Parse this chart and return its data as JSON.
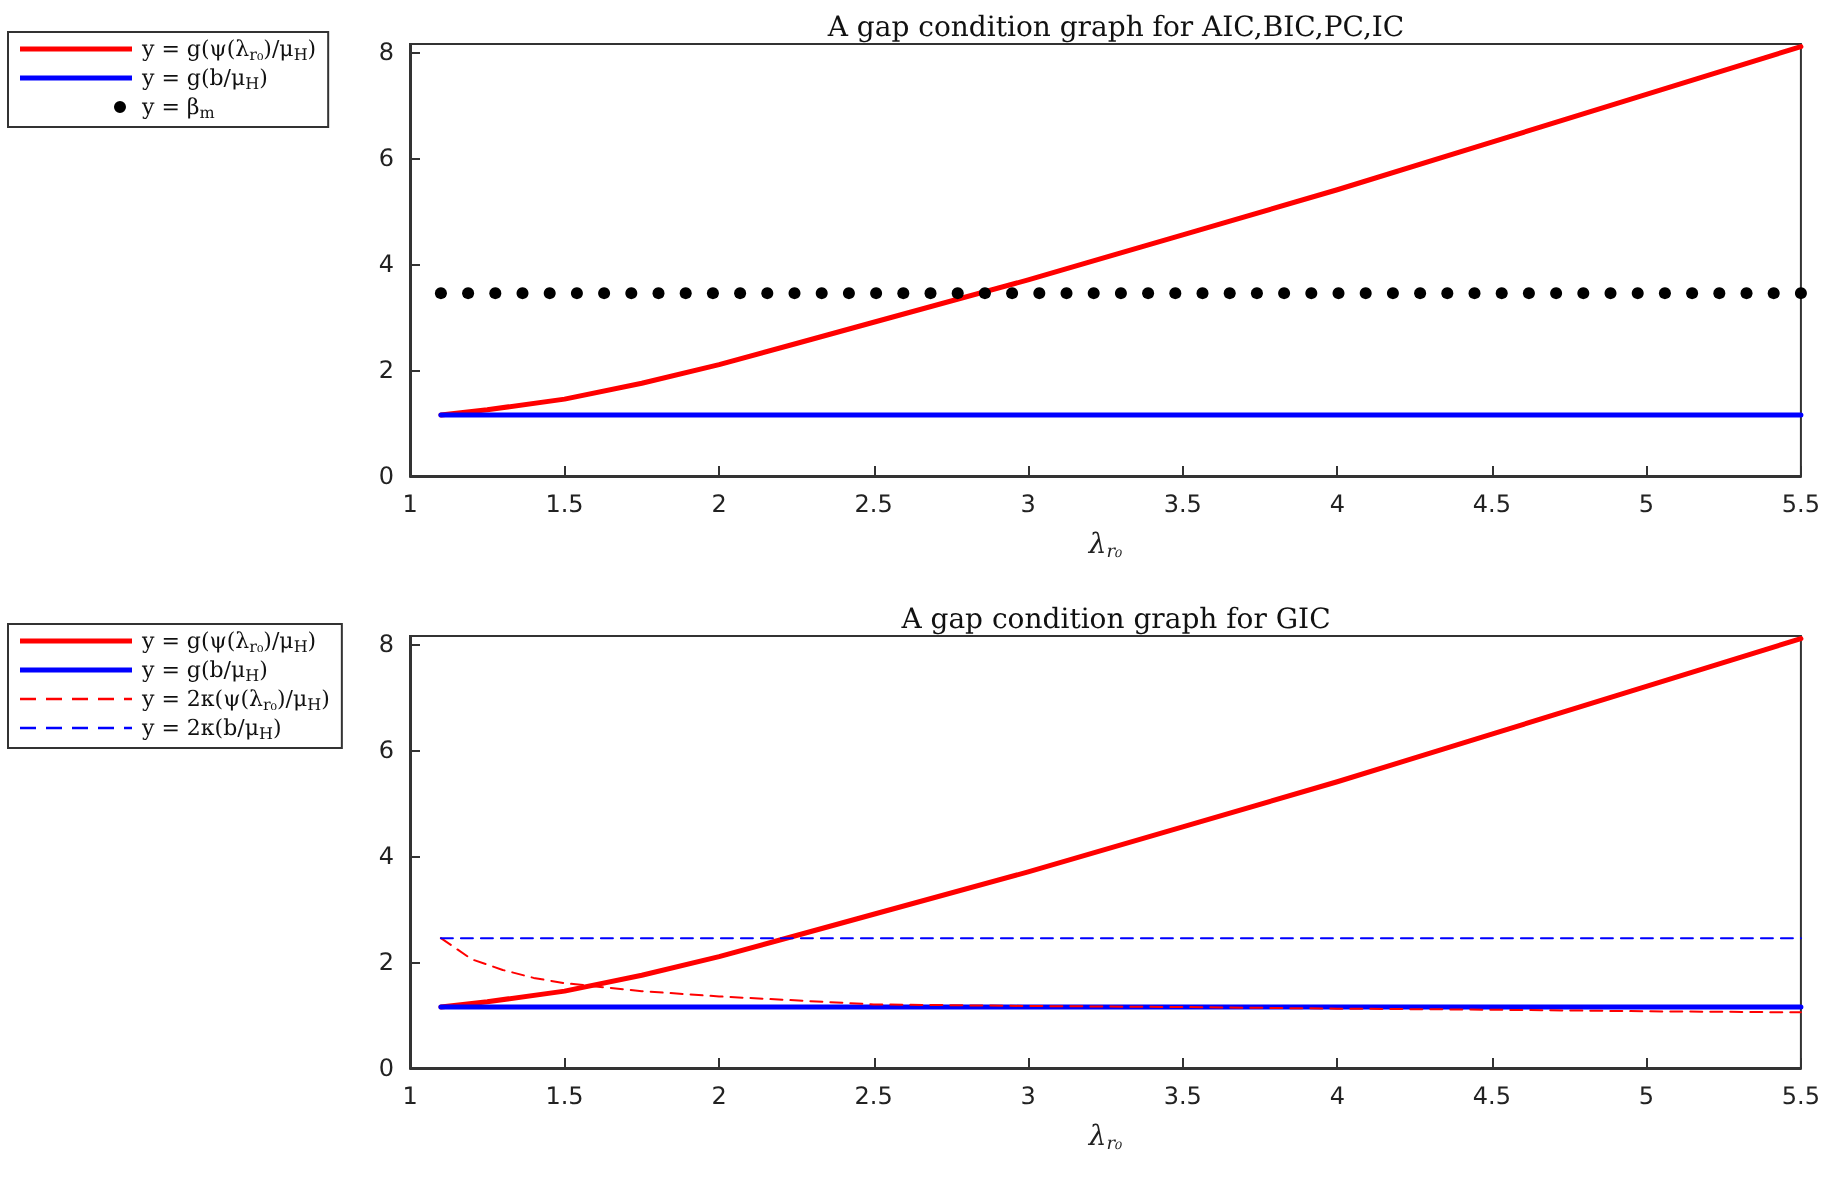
{
  "chart_data": [
    {
      "type": "line",
      "title": "A gap condition graph for AIC,BIC,PC,IC",
      "xlabel": "λ$_{r₀}$",
      "xlim": [
        1,
        5.5
      ],
      "xticks": [
        1,
        1.5,
        2,
        2.5,
        3,
        3.5,
        4,
        4.5,
        5,
        5.5
      ],
      "ylim": [
        0,
        8.15
      ],
      "yticks": [
        0,
        2,
        4,
        6,
        8
      ],
      "legend": "top left",
      "series": [
        {
          "name": "y = g(ψ(λ$_{r₀}$)/μ$_{H}$)",
          "color": "#ff0000",
          "line_style": "solid",
          "x": [
            1.1,
            1.25,
            1.5,
            1.75,
            2,
            2.25,
            2.5,
            3,
            3.5,
            4,
            4.5,
            5,
            5.5
          ],
          "values": [
            1.15,
            1.25,
            1.45,
            1.75,
            2.1,
            2.5,
            2.9,
            3.7,
            4.55,
            5.4,
            6.3,
            7.2,
            8.1
          ]
        },
        {
          "name": "y = g(b/μ$_{H}$)",
          "color": "#0000ff",
          "line_style": "solid",
          "x": [
            1.1,
            5.5
          ],
          "values": [
            1.15,
            1.15
          ]
        },
        {
          "name": "y = β$_{m}$",
          "color": "#000000",
          "type": "scatter",
          "marker": "circle",
          "x": [
            1.1,
            1.188,
            1.276,
            1.364,
            1.452,
            1.54,
            1.628,
            1.716,
            1.804,
            1.892,
            1.98,
            2.068,
            2.156,
            2.244,
            2.332,
            2.42,
            2.508,
            2.596,
            2.684,
            2.772,
            2.86,
            2.948,
            3.036,
            3.124,
            3.212,
            3.3,
            3.388,
            3.476,
            3.564,
            3.652,
            3.74,
            3.828,
            3.916,
            4.004,
            4.092,
            4.18,
            4.268,
            4.356,
            4.444,
            4.532,
            4.62,
            4.708,
            4.796,
            4.884,
            4.972,
            5.06,
            5.148,
            5.236,
            5.324,
            5.412,
            5.5
          ],
          "values": [
            3.45,
            3.45,
            3.45,
            3.45,
            3.45,
            3.45,
            3.45,
            3.45,
            3.45,
            3.45,
            3.45,
            3.45,
            3.45,
            3.45,
            3.45,
            3.45,
            3.45,
            3.45,
            3.45,
            3.45,
            3.45,
            3.45,
            3.45,
            3.45,
            3.45,
            3.45,
            3.45,
            3.45,
            3.45,
            3.45,
            3.45,
            3.45,
            3.45,
            3.45,
            3.45,
            3.45,
            3.45,
            3.45,
            3.45,
            3.45,
            3.45,
            3.45,
            3.45,
            3.45,
            3.45,
            3.45,
            3.45,
            3.45,
            3.45,
            3.45,
            3.45
          ]
        }
      ]
    },
    {
      "type": "line",
      "title": "A gap condition graph for GIC",
      "xlabel": "λ$_{r₀}$",
      "xlim": [
        1,
        5.5
      ],
      "xticks": [
        1,
        1.5,
        2,
        2.5,
        3,
        3.5,
        4,
        4.5,
        5,
        5.5
      ],
      "ylim": [
        0,
        8.15
      ],
      "yticks": [
        0,
        2,
        4,
        6,
        8
      ],
      "legend": "top left",
      "series": [
        {
          "name": "y = g(ψ(λ$_{r₀}$)/μ$_{H}$)",
          "color": "#ff0000",
          "line_style": "solid",
          "x": [
            1.1,
            1.25,
            1.5,
            1.75,
            2,
            2.25,
            2.5,
            3,
            3.5,
            4,
            4.5,
            5,
            5.5
          ],
          "values": [
            1.15,
            1.25,
            1.45,
            1.75,
            2.1,
            2.5,
            2.9,
            3.7,
            4.55,
            5.4,
            6.3,
            7.2,
            8.1
          ]
        },
        {
          "name": "y = g(b/μ$_{H}$)",
          "color": "#0000ff",
          "line_style": "solid",
          "x": [
            1.1,
            5.5
          ],
          "values": [
            1.15,
            1.15
          ]
        },
        {
          "name": "y = 2κ(ψ(λ$_{r₀}$)/μ$_{H}$)",
          "color": "#ff0000",
          "line_style": "dashed",
          "x": [
            1.1,
            1.2,
            1.3,
            1.4,
            1.5,
            1.75,
            2,
            2.5,
            3,
            3.5,
            4,
            4.5,
            5,
            5.5
          ],
          "values": [
            2.45,
            2.05,
            1.85,
            1.7,
            1.6,
            1.45,
            1.35,
            1.2,
            1.17,
            1.15,
            1.12,
            1.1,
            1.07,
            1.05
          ]
        },
        {
          "name": "y = 2κ(b/μ$_{H}$)",
          "color": "#0000ff",
          "line_style": "dashed",
          "x": [
            1.1,
            5.5
          ],
          "values": [
            2.45,
            2.45
          ]
        }
      ]
    }
  ]
}
